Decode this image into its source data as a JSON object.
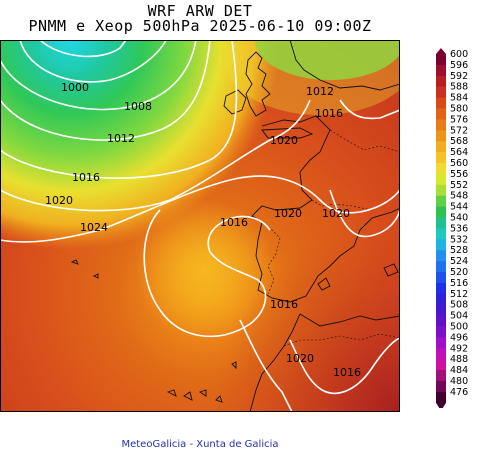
{
  "header": {
    "line1": "WRF ARW DET",
    "line2": "PNMM e Xeop 500hPa 2025-06-10 09:00Z"
  },
  "footer": {
    "credit": "MeteoGalicia - Xunta de Galicia"
  },
  "map": {
    "isobar_labels": [
      "1000",
      "1008",
      "1012",
      "1016",
      "1020",
      "1024",
      "1012",
      "1016",
      "1020",
      "1016",
      "1020",
      "1020",
      "1016",
      "1020",
      "1016"
    ]
  },
  "colorbar": {
    "labels": [
      "600",
      "596",
      "592",
      "588",
      "584",
      "580",
      "576",
      "572",
      "568",
      "564",
      "560",
      "556",
      "552",
      "548",
      "544",
      "540",
      "536",
      "532",
      "528",
      "524",
      "520",
      "516",
      "512",
      "508",
      "504",
      "500",
      "496",
      "492",
      "488",
      "484",
      "480",
      "476"
    ],
    "colors": [
      "#7a0030",
      "#9a1030",
      "#b82020",
      "#cc3020",
      "#d84a18",
      "#e06418",
      "#e87c18",
      "#ee9418",
      "#f4ac20",
      "#f6c428",
      "#f0dc30",
      "#d8ea30",
      "#a8e038",
      "#60d048",
      "#30c050",
      "#20c090",
      "#20c8c0",
      "#20b4e0",
      "#2090f0",
      "#2070f0",
      "#2050f0",
      "#2030e8",
      "#3020d8",
      "#4818d0",
      "#6010c8",
      "#8010c8",
      "#a010c8",
      "#c010b8",
      "#d010a0",
      "#a01078",
      "#700858",
      "#400030"
    ]
  }
}
